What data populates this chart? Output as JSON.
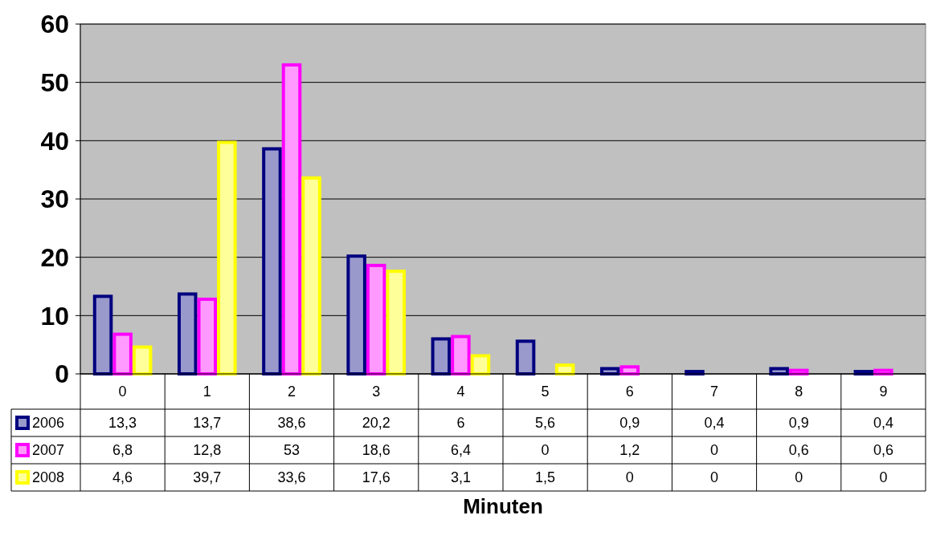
{
  "chart_data": {
    "type": "bar",
    "xlabel": "Minuten",
    "categories": [
      "0",
      "1",
      "2",
      "3",
      "4",
      "5",
      "6",
      "7",
      "8",
      "9"
    ],
    "series": [
      {
        "name": "2006",
        "color": "#000080",
        "values": [
          13.3,
          13.7,
          38.6,
          20.2,
          6,
          5.6,
          0.9,
          0.4,
          0.9,
          0.4
        ],
        "value_labels": [
          "13,3",
          "13,7",
          "38,6",
          "20,2",
          "6",
          "5,6",
          "0,9",
          "0,4",
          "0,9",
          "0,4"
        ]
      },
      {
        "name": "2007",
        "color": "#ff00ff",
        "values": [
          6.8,
          12.8,
          53,
          18.6,
          6.4,
          0,
          1.2,
          0,
          0.6,
          0.6
        ],
        "value_labels": [
          "6,8",
          "12,8",
          "53",
          "18,6",
          "6,4",
          "0",
          "1,2",
          "0",
          "0,6",
          "0,6"
        ]
      },
      {
        "name": "2008",
        "color": "#ffff00",
        "values": [
          4.6,
          39.7,
          33.6,
          17.6,
          3.1,
          1.5,
          0,
          0,
          0,
          0
        ],
        "value_labels": [
          "4,6",
          "39,7",
          "33,6",
          "17,6",
          "3,1",
          "1,5",
          "0",
          "0",
          "0",
          "0"
        ]
      }
    ],
    "ylim": [
      0,
      60
    ],
    "yticks": [
      0,
      10,
      20,
      30,
      40,
      50,
      60
    ],
    "grid": "y",
    "legend": "bottom"
  }
}
